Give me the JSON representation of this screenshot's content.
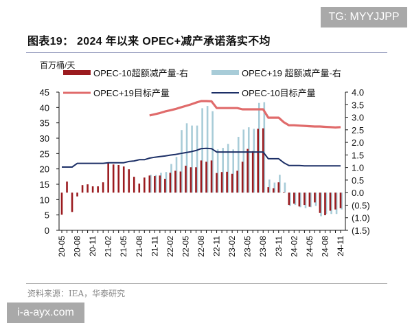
{
  "header": {
    "title": "图表19：  2024 年以来 OPEC+减产承诺落实不均"
  },
  "footer": {
    "source": "资料来源：IEA，华泰研究"
  },
  "watermarks": {
    "top_right": "TG: MYYJJPP",
    "bottom_left": "i-a-ayx.com"
  },
  "colors": {
    "opec10_excess": "#9b1b1f",
    "opec19_excess": "#a8ccd8",
    "opec19_target": "#e06b6b",
    "opec10_target": "#1c2f66"
  },
  "chart_data": {
    "type": "bar+line",
    "title": "",
    "ylabel": "百万桶/天",
    "left_axis": {
      "ylim": [
        0,
        45
      ],
      "ticks": [
        "0",
        "5",
        "10",
        "15",
        "20",
        "25",
        "30",
        "35",
        "40",
        "45"
      ]
    },
    "right_axis": {
      "ylim": [
        -1.5,
        4.0
      ],
      "ticks": [
        "(1.5)",
        "(1.0)",
        "(0.5)",
        "0.0",
        "0.5",
        "1.0",
        "1.5",
        "2.0",
        "2.5",
        "3.0",
        "3.5",
        "4.0"
      ]
    },
    "x_tick_labels": [
      "20-05",
      "20-08",
      "20-11",
      "21-02",
      "21-05",
      "21-08",
      "21-11",
      "22-02",
      "22-05",
      "22-08",
      "22-11",
      "23-02",
      "23-05",
      "23-08",
      "23-11",
      "24-02",
      "24-05",
      "24-08",
      "24-11"
    ],
    "x_start": "2020-05",
    "x_end": "2024-11",
    "grid": false,
    "legend": {
      "placement": "top",
      "entries": [
        "OPEC-10超额减产量-右",
        "OPEC+19 超额减产量-右",
        "OPEC+19目标产量",
        "OPEC-10目标产量"
      ]
    },
    "series": [
      {
        "name": "OPEC-10超额减产量-右",
        "type": "bar",
        "axis": "right",
        "values": [
          -0.88,
          0.44,
          -0.77,
          -0.15,
          0.3,
          0.33,
          0.25,
          0.25,
          0.41,
          1.18,
          1.12,
          1.1,
          1.04,
          0.93,
          0.63,
          0.36,
          0.6,
          0.68,
          0.66,
          0.68,
          0.55,
          0.79,
          0.87,
          0.84,
          1.07,
          1.01,
          1.01,
          1.28,
          1.23,
          1.28,
          0.78,
          0.82,
          0.83,
          0.75,
          0.87,
          1.23,
          1.74,
          1.65,
          2.54,
          2.56,
          0.22,
          0.17,
          0.41,
          0.02,
          -0.49,
          -0.44,
          -0.55,
          -0.49,
          -0.56,
          -0.39,
          -0.81,
          -0.9,
          -0.72,
          -0.67,
          -0.62
        ]
      },
      {
        "name": "OPEC+19 超额减产量-右",
        "type": "bar",
        "axis": "right",
        "values": [
          null,
          null,
          null,
          null,
          null,
          null,
          null,
          null,
          null,
          null,
          null,
          null,
          null,
          null,
          null,
          null,
          null,
          0.71,
          0.7,
          0.79,
          0.82,
          1.14,
          1.42,
          2.49,
          2.76,
          2.67,
          2.67,
          3.36,
          3.45,
          3.24,
          1.72,
          1.78,
          1.94,
          1.72,
          2.22,
          2.51,
          2.6,
          2.54,
          3.57,
          3.6,
          0.52,
          0.4,
          0.71,
          0.4,
          -0.53,
          -0.49,
          -0.58,
          -0.62,
          -0.58,
          -0.53,
          -0.94,
          -0.85,
          -0.85,
          -0.85,
          -0.67
        ]
      },
      {
        "name": "OPEC+19目标产量",
        "type": "line",
        "axis": "left",
        "values": [
          null,
          null,
          null,
          null,
          null,
          null,
          null,
          null,
          null,
          null,
          null,
          null,
          null,
          null,
          null,
          null,
          null,
          37.4,
          37.8,
          38.2,
          38.7,
          39.1,
          39.5,
          40.0,
          40.5,
          41.0,
          41.6,
          42.1,
          42.1,
          42.0,
          39.8,
          39.8,
          39.8,
          39.8,
          39.8,
          39.4,
          39.4,
          39.4,
          39.4,
          39.4,
          36.7,
          36.7,
          36.7,
          35.2,
          34.2,
          34.2,
          34.1,
          34.0,
          33.9,
          33.8,
          33.8,
          33.7,
          33.6,
          33.5,
          33.6
        ]
      },
      {
        "name": "OPEC-10目标产量",
        "type": "line",
        "axis": "left",
        "values": [
          20.6,
          20.6,
          20.6,
          21.8,
          21.8,
          21.8,
          21.8,
          21.8,
          21.8,
          22.0,
          22.0,
          22.0,
          22.0,
          22.4,
          22.6,
          23.0,
          23.0,
          23.5,
          23.8,
          24.0,
          24.2,
          24.5,
          24.7,
          25.0,
          25.3,
          25.6,
          26.0,
          26.6,
          26.7,
          26.6,
          25.5,
          25.5,
          25.5,
          25.5,
          25.5,
          25.5,
          25.5,
          25.5,
          25.5,
          25.5,
          23.3,
          23.3,
          23.3,
          22.0,
          21.1,
          21.1,
          21.1,
          21.0,
          21.0,
          21.0,
          21.0,
          21.0,
          21.0,
          21.0,
          21.0
        ]
      }
    ]
  }
}
